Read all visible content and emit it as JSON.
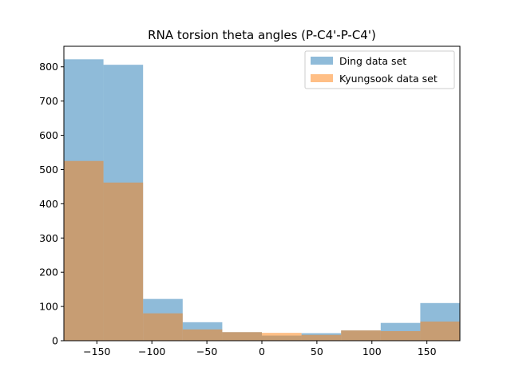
{
  "chart_data": {
    "type": "histogram",
    "title": "RNA torsion theta angles (P-C4'-P-C4')",
    "xlabel": "",
    "ylabel": "",
    "bin_edges": [
      -180,
      -144,
      -108,
      -72,
      -36,
      0,
      36,
      72,
      108,
      144,
      180
    ],
    "xlim": [
      -180,
      180
    ],
    "ylim": [
      0,
      860
    ],
    "x_ticks": [
      -150,
      -100,
      -50,
      0,
      50,
      100,
      150
    ],
    "x_tick_labels": [
      "−150",
      "−100",
      "−50",
      "0",
      "50",
      "100",
      "150"
    ],
    "y_ticks": [
      0,
      100,
      200,
      300,
      400,
      500,
      600,
      700,
      800
    ],
    "y_tick_labels": [
      "0",
      "100",
      "200",
      "300",
      "400",
      "500",
      "600",
      "700",
      "800"
    ],
    "grid": false,
    "legend_position": "top-right",
    "series": [
      {
        "name": "Ding data set",
        "color": "#1f77b4",
        "alpha": 0.5,
        "values": [
          822,
          806,
          122,
          54,
          25,
          15,
          22,
          30,
          52,
          110
        ]
      },
      {
        "name": "Kyungsook data set",
        "color": "#ff7f0e",
        "alpha": 0.5,
        "values": [
          525,
          462,
          80,
          33,
          25,
          23,
          17,
          30,
          28,
          56
        ]
      }
    ]
  }
}
